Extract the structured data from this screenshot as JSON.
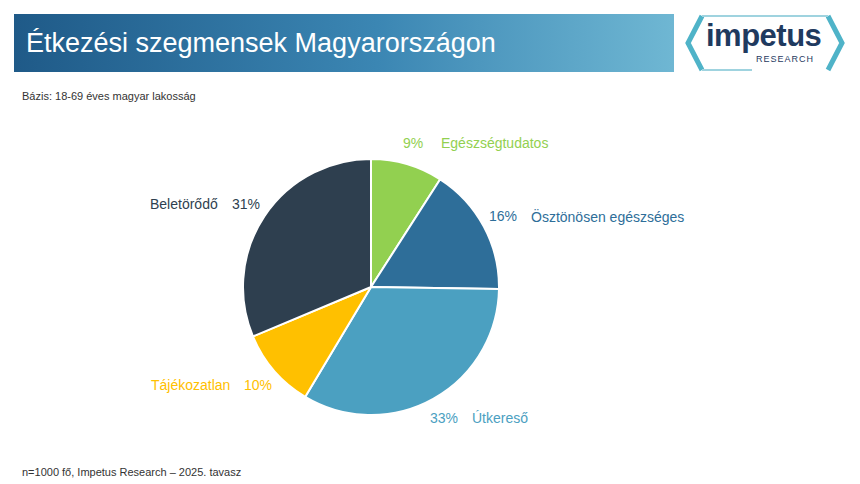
{
  "chart_data": {
    "type": "pie",
    "title": "Étkezési szegmensek Magyarországon",
    "subtitle": "Bázis: 18-69 éves magyar lakosság",
    "categories": [
      "Egészségtudatos",
      "Ösztönösen egészséges",
      "Útkereső",
      "Tájékozatlan",
      "Beletörődő"
    ],
    "values": [
      9,
      16,
      33,
      10,
      31
    ],
    "value_labels": [
      "9%",
      "16%",
      "33%",
      "10%",
      "31%"
    ],
    "colors": [
      "#92d050",
      "#2e6e99",
      "#4ba0c1",
      "#ffc000",
      "#2e3f4f"
    ],
    "data_labels": true
  },
  "footnote": "n=1000 fő, Impetus Research – 2025. tavasz",
  "logo": {
    "name": "impetus",
    "tagline": "RESEARCH"
  }
}
